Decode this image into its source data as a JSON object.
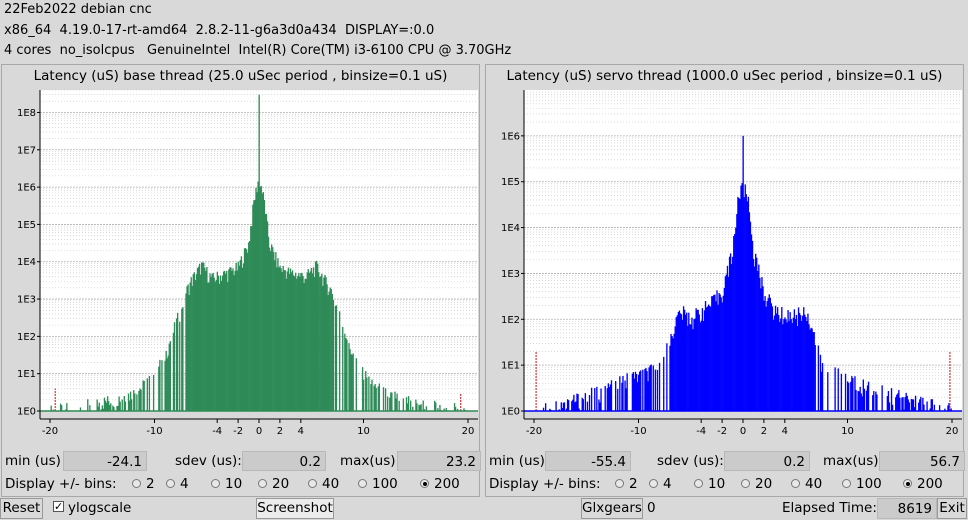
{
  "header": {
    "line1": "22Feb2022 debian cnc",
    "line2": "x86_64  4.19.0-17-rt-amd64  2.8.2-11-g6a3d0a434  DISPLAY=:0.0",
    "line3": "4 cores  no_isolcpus   GenuineIntel  Intel(R) Core(TM) i3-6100 CPU @ 3.70GHz"
  },
  "colors": {
    "base_bars": "#2e8b57",
    "servo_bars": "#0000ff",
    "plot_bg": "#ffffff",
    "outlier_marker": "#dd3333"
  },
  "panels": [
    {
      "title": "Latency (uS) base thread (25.0 uSec period , binsize=0.1 uS)",
      "min_label": "min (us)",
      "min": "-24.1",
      "sdev_label": "sdev (us):",
      "sdev": "0.2",
      "max_label": "max(us)",
      "max": "23.2",
      "bins_label": "Display +/- bins:",
      "bins_options": [
        "2",
        "4",
        "10",
        "20",
        "40",
        "100",
        "200"
      ],
      "bins_selected": "200"
    },
    {
      "title": "Latency (uS) servo thread (1000.0 uSec period , binsize=0.1 uS)",
      "min_label": "min (us)",
      "min": "-55.4",
      "sdev_label": "sdev (us):",
      "sdev": "0.2",
      "max_label": "max(us)",
      "max": "56.7",
      "bins_label": "Display +/- bins:",
      "bins_options": [
        "2",
        "4",
        "10",
        "20",
        "40",
        "100",
        "200"
      ],
      "bins_selected": "200"
    }
  ],
  "bottom": {
    "reset_label": "Reset",
    "ylogscale_label": "ylogscale",
    "ylogscale_checked": true,
    "screenshot_label": "Screenshot",
    "glxgears_label": "Glxgears",
    "glxgears_count": "0",
    "elapsed_label": "Elapsed Time:",
    "elapsed_value": "8619",
    "exit_label": "Exit"
  },
  "chart_data": [
    {
      "type": "bar",
      "title": "Latency (uS) base thread (25.0 uSec period , binsize=0.1 uS)",
      "xlabel": "",
      "ylabel": "",
      "xlim": [
        -20,
        20
      ],
      "y_scale": "log",
      "ylim": [
        1,
        400000000
      ],
      "grid": true,
      "x_ticks": [
        "-20",
        "-10",
        "-4",
        "-2",
        "0",
        "2",
        "4",
        "10",
        "20"
      ],
      "x_tick_values": [
        -20,
        -10,
        -4,
        -2,
        0,
        2,
        4,
        10,
        20
      ],
      "y_ticks": [
        "1E0",
        "1E1",
        "1E2",
        "1E3",
        "1E4",
        "1E5",
        "1E6",
        "1E7",
        "1E8"
      ],
      "y_tick_values": [
        1,
        10,
        100,
        1000,
        10000,
        100000,
        1000000,
        10000000,
        100000000
      ],
      "profile": [
        [
          -20,
          1
        ],
        [
          -16,
          1.5
        ],
        [
          -14,
          2
        ],
        [
          -12,
          3
        ],
        [
          -11,
          5
        ],
        [
          -10,
          10
        ],
        [
          -9,
          30
        ],
        [
          -8,
          200
        ],
        [
          -7,
          1500
        ],
        [
          -6.5,
          3000
        ],
        [
          -5.5,
          8000
        ],
        [
          -4.5,
          3500
        ],
        [
          -3,
          5000
        ],
        [
          -2,
          7000
        ],
        [
          -1,
          30000
        ],
        [
          -0.5,
          400000
        ],
        [
          0,
          2000000
        ],
        [
          0.5,
          400000
        ],
        [
          1,
          30000
        ],
        [
          2,
          7000
        ],
        [
          3,
          5000
        ],
        [
          4.5,
          4000
        ],
        [
          5.5,
          7500
        ],
        [
          6.5,
          2500
        ],
        [
          7,
          1500
        ],
        [
          8,
          200
        ],
        [
          9,
          30
        ],
        [
          10,
          10
        ],
        [
          11,
          5
        ],
        [
          12,
          3
        ],
        [
          14,
          2
        ],
        [
          16,
          1.5
        ],
        [
          20,
          1
        ]
      ],
      "peak": {
        "x": 0,
        "value": 300000000
      },
      "outliers": [
        {
          "x": -19.5,
          "value": 4
        },
        {
          "x": 19.3,
          "value": 3
        }
      ]
    },
    {
      "type": "bar",
      "title": "Latency (uS) servo thread (1000.0 uSec period , binsize=0.1 uS)",
      "xlabel": "",
      "ylabel": "",
      "xlim": [
        -20,
        20
      ],
      "y_scale": "log",
      "ylim": [
        1,
        10000000
      ],
      "grid": true,
      "x_ticks": [
        "-20",
        "-10",
        "-4",
        "-2",
        "0",
        "2",
        "4",
        "10",
        "20"
      ],
      "x_tick_values": [
        -20,
        -10,
        -4,
        -2,
        0,
        2,
        4,
        10,
        20
      ],
      "y_ticks": [
        "1E0",
        "1E1",
        "1E2",
        "1E3",
        "1E4",
        "1E5",
        "1E6"
      ],
      "y_tick_values": [
        1,
        10,
        100,
        1000,
        10000,
        100000,
        1000000
      ],
      "profile": [
        [
          -20,
          1
        ],
        [
          -15,
          2
        ],
        [
          -12,
          4
        ],
        [
          -10,
          6
        ],
        [
          -8,
          8
        ],
        [
          -6.5,
          80
        ],
        [
          -6,
          150
        ],
        [
          -5,
          100
        ],
        [
          -4,
          150
        ],
        [
          -3,
          220
        ],
        [
          -2,
          400
        ],
        [
          -1,
          3000
        ],
        [
          -0.5,
          40000
        ],
        [
          0,
          80000
        ],
        [
          0.5,
          40000
        ],
        [
          1,
          3000
        ],
        [
          2,
          400
        ],
        [
          3,
          150
        ],
        [
          4,
          120
        ],
        [
          5,
          120
        ],
        [
          6,
          150
        ],
        [
          6.5,
          80
        ],
        [
          7.5,
          10
        ],
        [
          9,
          6
        ],
        [
          11,
          4
        ],
        [
          13,
          3
        ],
        [
          15,
          2
        ],
        [
          20,
          1
        ]
      ],
      "peak": {
        "x": 0,
        "value": 1000000
      },
      "outliers": [
        {
          "x": -19.8,
          "value": 20
        },
        {
          "x": 19.8,
          "value": 20
        }
      ]
    }
  ]
}
